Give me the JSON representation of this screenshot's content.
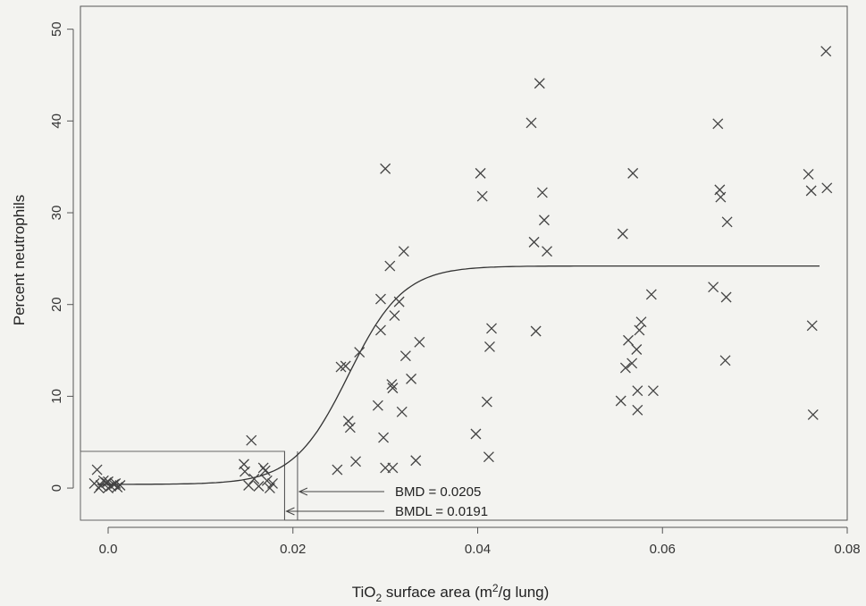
{
  "chart_data": {
    "type": "scatter",
    "title": "",
    "xlabel": {
      "pre": "TiO",
      "sub": "2",
      "mid": " surface area (m",
      "sup": "2",
      "post": "/g lung)"
    },
    "ylabel": "Percent neutrophils",
    "xlim": [
      -0.003,
      0.08
    ],
    "ylim": [
      -3.5,
      52.5
    ],
    "xticks": [
      0.0,
      0.02,
      0.04,
      0.06,
      0.08
    ],
    "xtick_labels": [
      "0.0",
      "0.02",
      "0.04",
      "0.06",
      "0.08"
    ],
    "yticks": [
      0,
      10,
      20,
      30,
      40,
      50
    ],
    "ytick_labels": [
      "0",
      "10",
      "20",
      "30",
      "40",
      "50"
    ],
    "grid": false,
    "series": [
      {
        "marker": "x",
        "color": "#444444",
        "points": [
          [
            -0.0012,
            2.0
          ],
          [
            -0.0015,
            0.5
          ],
          [
            -0.0008,
            0.3
          ],
          [
            -0.0002,
            0.6
          ],
          [
            0.0,
            0.0
          ],
          [
            0.0003,
            0.2
          ],
          [
            0.0006,
            0.4
          ],
          [
            0.001,
            0.1
          ],
          [
            -0.0005,
            0.8
          ],
          [
            0.0008,
            0.5
          ],
          [
            0.0013,
            0.3
          ],
          [
            0.0,
            0.7
          ],
          [
            -0.001,
            0.0
          ],
          [
            0.0147,
            2.6
          ],
          [
            0.0148,
            1.8
          ],
          [
            0.0152,
            0.3
          ],
          [
            0.0155,
            5.2
          ],
          [
            0.0158,
            1.0
          ],
          [
            0.0163,
            0.2
          ],
          [
            0.0168,
            2.2
          ],
          [
            0.017,
            1.9
          ],
          [
            0.0172,
            0.8
          ],
          [
            0.0175,
            0.0
          ],
          [
            0.0178,
            0.5
          ],
          [
            0.0248,
            2.0
          ],
          [
            0.0252,
            13.2
          ],
          [
            0.0257,
            13.3
          ],
          [
            0.026,
            7.3
          ],
          [
            0.0262,
            6.6
          ],
          [
            0.0268,
            2.9
          ],
          [
            0.0272,
            14.8
          ],
          [
            0.0292,
            9.0
          ],
          [
            0.0295,
            17.2
          ],
          [
            0.0295,
            20.6
          ],
          [
            0.0298,
            5.5
          ],
          [
            0.03,
            34.8
          ],
          [
            0.03,
            2.2
          ],
          [
            0.0305,
            24.2
          ],
          [
            0.0307,
            11.3
          ],
          [
            0.0308,
            10.9
          ],
          [
            0.0308,
            2.2
          ],
          [
            0.031,
            18.8
          ],
          [
            0.0315,
            20.3
          ],
          [
            0.0318,
            8.3
          ],
          [
            0.032,
            25.8
          ],
          [
            0.0322,
            14.4
          ],
          [
            0.0328,
            11.9
          ],
          [
            0.0333,
            3.0
          ],
          [
            0.0337,
            15.9
          ],
          [
            0.0398,
            5.9
          ],
          [
            0.0403,
            34.3
          ],
          [
            0.0405,
            31.8
          ],
          [
            0.041,
            9.4
          ],
          [
            0.0412,
            3.4
          ],
          [
            0.0413,
            15.4
          ],
          [
            0.0415,
            17.4
          ],
          [
            0.0458,
            39.8
          ],
          [
            0.0461,
            26.8
          ],
          [
            0.0463,
            17.1
          ],
          [
            0.0467,
            44.1
          ],
          [
            0.047,
            32.2
          ],
          [
            0.0472,
            29.2
          ],
          [
            0.0475,
            25.8
          ],
          [
            0.0555,
            9.5
          ],
          [
            0.0557,
            27.7
          ],
          [
            0.056,
            13.1
          ],
          [
            0.0563,
            16.1
          ],
          [
            0.0567,
            13.6
          ],
          [
            0.0568,
            34.3
          ],
          [
            0.0572,
            15.1
          ],
          [
            0.0573,
            10.6
          ],
          [
            0.0573,
            8.5
          ],
          [
            0.0575,
            17.2
          ],
          [
            0.0577,
            18.1
          ],
          [
            0.0588,
            21.1
          ],
          [
            0.059,
            10.6
          ],
          [
            0.0655,
            21.9
          ],
          [
            0.066,
            39.7
          ],
          [
            0.0662,
            32.5
          ],
          [
            0.0663,
            31.7
          ],
          [
            0.0668,
            13.9
          ],
          [
            0.0669,
            20.8
          ],
          [
            0.067,
            29.0
          ],
          [
            0.0758,
            34.2
          ],
          [
            0.0761,
            32.4
          ],
          [
            0.0762,
            17.7
          ],
          [
            0.0763,
            8.0
          ],
          [
            0.0777,
            47.6
          ],
          [
            0.0778,
            32.7
          ]
        ]
      }
    ],
    "fit_curve": {
      "style": "sigmoid",
      "xmin": -0.0012,
      "xmax": 0.077,
      "bottom": 0.4,
      "top": 24.2,
      "ec50": 0.026,
      "slope": 3.5
    },
    "annotations": [
      {
        "label": "BMD = 0.0205",
        "x": 0.0205
      },
      {
        "label": "BMDL = 0.0191",
        "x": 0.0191
      }
    ],
    "reference_box": {
      "x0": -0.003,
      "x1": 0.0191,
      "y0": -3.5,
      "y1": 4.0
    }
  }
}
